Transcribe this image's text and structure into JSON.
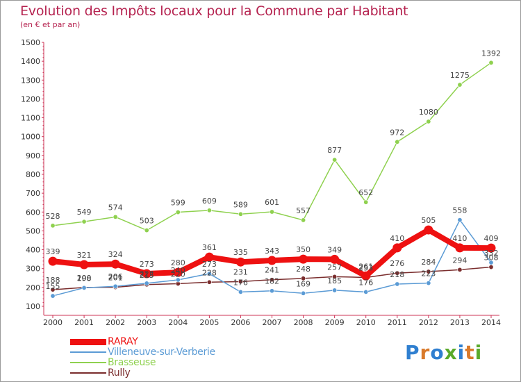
{
  "title": "Evolution des Impôts locaux pour la Commune par Habitant",
  "subtitle": "(en € et par an)",
  "brand": {
    "text": "Proxiti",
    "letter_colors": [
      "#2f7fd0",
      "#d97a2b",
      "#2f7fd0",
      "#5aaa2a",
      "#2f7fd0",
      "#d97a2b",
      "#5aaa2a"
    ]
  },
  "chart_data": {
    "type": "line",
    "x": [
      2000,
      2001,
      2002,
      2003,
      2004,
      2005,
      2006,
      2007,
      2008,
      2009,
      2010,
      2011,
      2012,
      2013,
      2014
    ],
    "ylim": [
      100,
      1500
    ],
    "yticks": [
      100,
      200,
      300,
      400,
      500,
      600,
      700,
      800,
      900,
      1000,
      1100,
      1200,
      1300,
      1400,
      1500
    ],
    "grid": false,
    "legend_position": "bottom-left",
    "series": [
      {
        "name": "RARAY",
        "color": "#ee1111",
        "values": [
          339,
          321,
          324,
          273,
          280,
          361,
          335,
          343,
          350,
          349,
          261,
          410,
          505,
          410,
          409
        ],
        "labels": [
          "339",
          "321",
          "324",
          "273",
          "280",
          "361",
          "335",
          "343",
          "350",
          "349",
          "261",
          "410",
          "505",
          "410",
          "409"
        ]
      },
      {
        "name": "Villeneuve-sur-Verberie",
        "color": "#5b9bd5",
        "values": [
          155,
          198,
          206,
          222,
          240,
          273,
          176,
          182,
          169,
          185,
          176,
          218,
          223,
          558,
          332
        ],
        "labels": [
          "155",
          "198",
          "206",
          "222",
          "240",
          "273",
          "176",
          "182",
          "169",
          "185",
          "176",
          "218",
          "223",
          "558",
          "332"
        ]
      },
      {
        "name": "Brasseuse",
        "color": "#8fd14f",
        "values": [
          528,
          549,
          574,
          503,
          599,
          609,
          589,
          601,
          557,
          877,
          652,
          972,
          1080,
          1275,
          1392
        ],
        "labels": [
          "528",
          "549",
          "574",
          "503",
          "599",
          "609",
          "589",
          "601",
          "557",
          "877",
          "652",
          "972",
          "1080",
          "1275",
          "1392"
        ]
      },
      {
        "name": "Rully",
        "color": "#7a2d2d",
        "values": [
          188,
          200,
          201,
          215,
          220,
          228,
          231,
          241,
          248,
          257,
          253,
          276,
          284,
          294,
          308
        ],
        "labels": [
          "188",
          "200",
          "201",
          "215",
          "220",
          "228",
          "231",
          "241",
          "248",
          "257",
          "253",
          "276",
          "284",
          "294",
          "308"
        ]
      }
    ]
  },
  "legend": [
    {
      "label": "RARAY",
      "color": "#ee1111",
      "width": 9
    },
    {
      "label": "Villeneuve-sur-Verberie",
      "color": "#5b9bd5",
      "width": 2
    },
    {
      "label": "Brasseuse",
      "color": "#8fd14f",
      "width": 2
    },
    {
      "label": "Rully",
      "color": "#7a2d2d",
      "width": 2
    }
  ]
}
